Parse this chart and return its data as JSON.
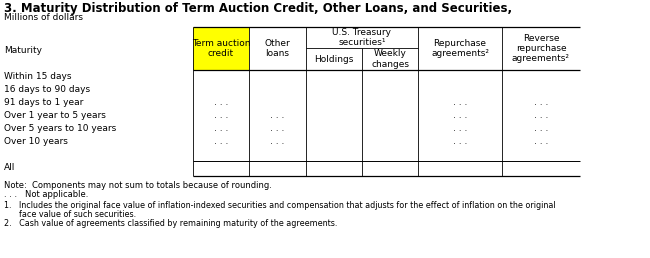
{
  "title": "3. Maturity Distribution of Term Auction Credit, Other Loans, and Securities,",
  "subtitle": "Millions of dollars",
  "col_headers": {
    "maturity": "Maturity",
    "term_auction": "Term auction\ncredit",
    "other_loans": "Other\nloans",
    "us_treasury": "U.S. Treasury\nsecurities¹",
    "holdings": "Holdings",
    "weekly_changes": "Weekly\nchanges",
    "repurchase": "Repurchase\nagreements²",
    "reverse_repurchase": "Reverse\nrepurchase\nagreements²"
  },
  "rows": [
    "Within 15 days",
    "16 days to 90 days",
    "91 days to 1 year",
    "Over 1 year to 5 years",
    "Over 5 years to 10 years",
    "Over 10 years",
    "",
    "All"
  ],
  "data": {
    "Within 15 days": [
      "",
      "",
      "",
      "",
      "",
      ""
    ],
    "16 days to 90 days": [
      "",
      "",
      "",
      "",
      "",
      ""
    ],
    "91 days to 1 year": [
      ". . .",
      "",
      "",
      "",
      ". . .",
      ". . ."
    ],
    "Over 1 year to 5 years": [
      ". . .",
      ". . .",
      "",
      "",
      ". . .",
      ". . ."
    ],
    "Over 5 years to 10 years": [
      ". . .",
      ". . .",
      "",
      "",
      ". . .",
      ". . ."
    ],
    "Over 10 years": [
      ". . .",
      ". . .",
      "",
      "",
      ". . .",
      ". . ."
    ],
    "": [
      "",
      "",
      "",
      "",
      "",
      ""
    ],
    "All": [
      "",
      "",
      "",
      "",
      "",
      ""
    ]
  },
  "notes_line1": "Note:  Components may not sum to totals because of rounding.",
  "notes_line2": ". . .   Not applicable.",
  "footnote1a": "1.   Includes the original face value of inflation-indexed securities and compensation that adjusts for the effect of inflation on the original",
  "footnote1b": "      face value of such securities.",
  "footnote2": "2.   Cash value of agreements classified by remaining maturity of the agreements.",
  "term_auction_highlight": "#FFFF00",
  "bg_color": "#FFFFFF",
  "text_color": "#000000"
}
